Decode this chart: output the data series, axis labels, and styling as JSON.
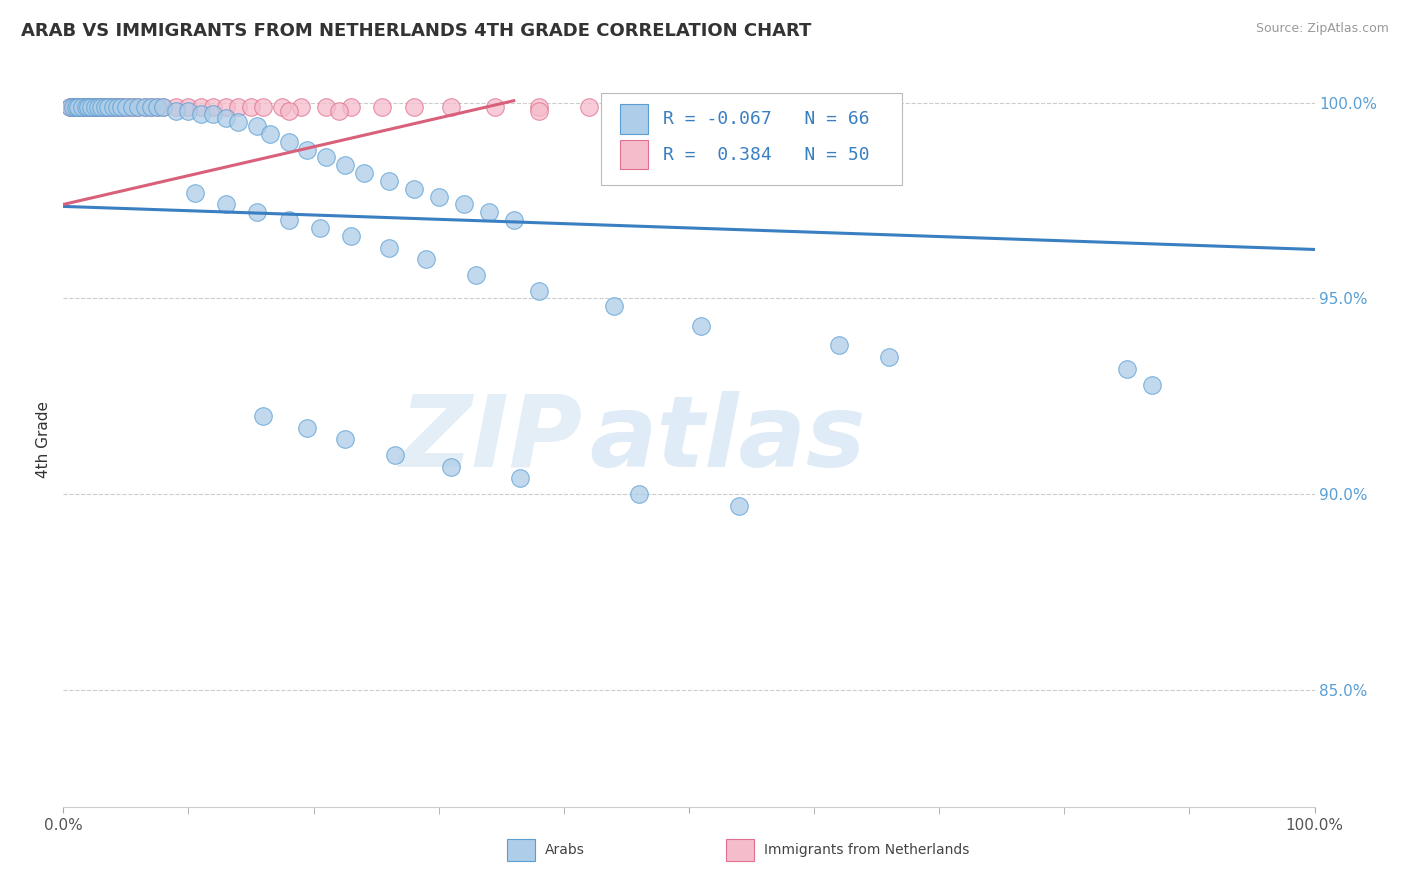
{
  "title": "ARAB VS IMMIGRANTS FROM NETHERLANDS 4TH GRADE CORRELATION CHART",
  "source": "Source: ZipAtlas.com",
  "ylabel": "4th Grade",
  "xlim": [
    0.0,
    1.0
  ],
  "ylim": [
    0.82,
    1.008
  ],
  "yticks": [
    0.85,
    0.9,
    0.95,
    1.0
  ],
  "ytick_labels": [
    "85.0%",
    "90.0%",
    "95.0%",
    "100.0%"
  ],
  "legend_blue_R": "-0.067",
  "legend_blue_N": "66",
  "legend_pink_R": "0.384",
  "legend_pink_N": "50",
  "legend_label_blue": "Arabs",
  "legend_label_pink": "Immigrants from Netherlands",
  "blue_color": "#aecde8",
  "blue_edge": "#5a9fd4",
  "pink_color": "#f5bccb",
  "pink_edge": "#e07090",
  "line_blue": "#3a7fc1",
  "line_pink": "#d9607a",
  "watermark_zip": "ZIP",
  "watermark_atlas": "atlas",
  "blue_x": [
    0.005,
    0.008,
    0.01,
    0.012,
    0.015,
    0.018,
    0.02,
    0.022,
    0.025,
    0.028,
    0.03,
    0.033,
    0.036,
    0.04,
    0.043,
    0.046,
    0.05,
    0.055,
    0.06,
    0.065,
    0.07,
    0.075,
    0.08,
    0.09,
    0.1,
    0.11,
    0.12,
    0.13,
    0.14,
    0.155,
    0.165,
    0.18,
    0.195,
    0.21,
    0.225,
    0.24,
    0.26,
    0.28,
    0.3,
    0.32,
    0.34,
    0.36,
    0.105,
    0.13,
    0.155,
    0.18,
    0.205,
    0.23,
    0.26,
    0.29,
    0.33,
    0.38,
    0.44,
    0.51,
    0.62,
    0.66,
    0.85,
    0.87,
    0.16,
    0.195,
    0.225,
    0.265,
    0.31,
    0.365,
    0.46,
    0.54
  ],
  "blue_y": [
    0.999,
    0.999,
    0.999,
    0.999,
    0.999,
    0.999,
    0.999,
    0.999,
    0.999,
    0.999,
    0.999,
    0.999,
    0.999,
    0.999,
    0.999,
    0.999,
    0.999,
    0.999,
    0.999,
    0.999,
    0.999,
    0.999,
    0.999,
    0.998,
    0.998,
    0.997,
    0.997,
    0.996,
    0.995,
    0.994,
    0.992,
    0.99,
    0.988,
    0.986,
    0.984,
    0.982,
    0.98,
    0.978,
    0.976,
    0.974,
    0.972,
    0.97,
    0.977,
    0.974,
    0.972,
    0.97,
    0.968,
    0.966,
    0.963,
    0.96,
    0.956,
    0.952,
    0.948,
    0.943,
    0.938,
    0.935,
    0.932,
    0.928,
    0.92,
    0.917,
    0.914,
    0.91,
    0.907,
    0.904,
    0.9,
    0.897
  ],
  "pink_x": [
    0.005,
    0.007,
    0.009,
    0.011,
    0.013,
    0.015,
    0.017,
    0.019,
    0.021,
    0.023,
    0.025,
    0.027,
    0.029,
    0.031,
    0.033,
    0.035,
    0.037,
    0.039,
    0.042,
    0.045,
    0.048,
    0.052,
    0.056,
    0.06,
    0.065,
    0.07,
    0.075,
    0.08,
    0.09,
    0.1,
    0.11,
    0.12,
    0.13,
    0.14,
    0.15,
    0.16,
    0.175,
    0.19,
    0.21,
    0.23,
    0.255,
    0.28,
    0.31,
    0.345,
    0.38,
    0.42,
    0.38,
    0.18,
    0.22,
    0.64
  ],
  "pink_y": [
    0.999,
    0.999,
    0.999,
    0.999,
    0.999,
    0.999,
    0.999,
    0.999,
    0.999,
    0.999,
    0.999,
    0.999,
    0.999,
    0.999,
    0.999,
    0.999,
    0.999,
    0.999,
    0.999,
    0.999,
    0.999,
    0.999,
    0.999,
    0.999,
    0.999,
    0.999,
    0.999,
    0.999,
    0.999,
    0.999,
    0.999,
    0.999,
    0.999,
    0.999,
    0.999,
    0.999,
    0.999,
    0.999,
    0.999,
    0.999,
    0.999,
    0.999,
    0.999,
    0.999,
    0.999,
    0.999,
    0.998,
    0.998,
    0.998,
    0.999
  ],
  "blue_line_x": [
    0.0,
    1.0
  ],
  "blue_line_y": [
    0.9735,
    0.9625
  ],
  "pink_line_x": [
    0.0,
    0.36
  ],
  "pink_line_y": [
    0.974,
    1.0005
  ]
}
